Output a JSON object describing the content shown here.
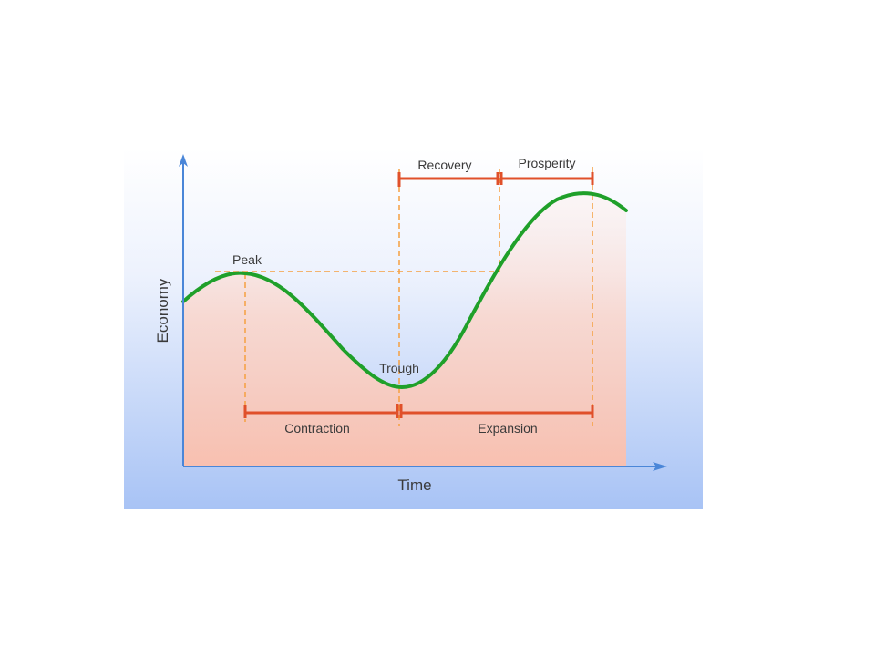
{
  "diagram": {
    "axis_labels": {
      "x": "Time",
      "y": "Economy"
    },
    "point_labels": {
      "peak": "Peak",
      "trough": "Trough"
    },
    "phase_labels": {
      "recovery": "Recovery",
      "prosperity": "Prosperity",
      "contraction": "Contraction",
      "expansion": "Expansion"
    },
    "colors": {
      "curve": "#1fa02a",
      "brackets": "#e0502a",
      "guides": "#f5a040",
      "axes": "#4a86d8",
      "area_fill": "#f9c9bd",
      "background_top": "#ffffff",
      "background_bottom": "#a8c3f5"
    }
  }
}
